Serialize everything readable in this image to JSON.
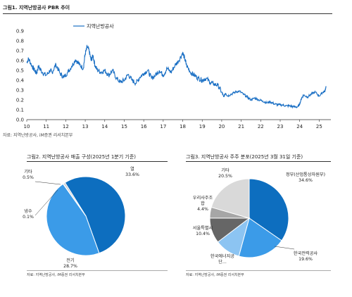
{
  "fig1": {
    "title": "그림1. 지역난방공사 PBR 추이",
    "source": "자료: 지역난방공사, iM증권 리서치본부"
  },
  "fig2": {
    "title": "그림2. 지역난방공사 매출 구성(2025년 1분기 기준)",
    "source": "자료: 지역난방공사, iM증권 리서치본부"
  },
  "fig3": {
    "title": "그림3. 지역난방공사 주주 분포(2025년 3월 31일 기준)",
    "source": "자료: 지역난방공사, iM증권 리서치본부"
  },
  "colors": {
    "line": "#1a6fc4",
    "pie2": [
      "#0d6ebf",
      "#3b9be8",
      "#1f2b49",
      "#c9ccd3"
    ],
    "pie3": [
      "#0d6ebf",
      "#3b9be8",
      "#8cc4f2",
      "#666666",
      "#a6a6a6",
      "#d9d9d9"
    ]
  },
  "chart_data": [
    {
      "type": "line",
      "legend": "top-left",
      "grid": false,
      "xlim": [
        10,
        25.6
      ],
      "ylim": [
        0,
        0.9
      ],
      "x_ticks": [
        "10",
        "11",
        "12",
        "13",
        "14",
        "15",
        "16",
        "17",
        "18",
        "19",
        "20",
        "21",
        "22",
        "23",
        "24",
        "25"
      ],
      "y_ticks": [
        "0.0",
        "0.1",
        "0.2",
        "0.3",
        "0.4",
        "0.5",
        "0.6",
        "0.7",
        "0.8",
        "0.9"
      ],
      "series": [
        {
          "name": "지역난방공사",
          "x": [
            10.0,
            10.1,
            10.25,
            10.4,
            10.5,
            10.6,
            10.8,
            11.0,
            11.2,
            11.3,
            11.5,
            11.7,
            11.9,
            12.1,
            12.3,
            12.5,
            12.7,
            12.9,
            13.0,
            13.1,
            13.2,
            13.3,
            13.4,
            13.5,
            13.6,
            13.8,
            14.0,
            14.2,
            14.4,
            14.6,
            14.8,
            15.0,
            15.2,
            15.4,
            15.6,
            15.8,
            16.0,
            16.2,
            16.4,
            16.6,
            16.8,
            17.0,
            17.2,
            17.4,
            17.6,
            17.8,
            18.0,
            18.1,
            18.2,
            18.4,
            18.6,
            18.8,
            19.0,
            19.2,
            19.4,
            19.6,
            19.8,
            20.0,
            20.1,
            20.2,
            20.3,
            20.5,
            20.7,
            20.9,
            21.1,
            21.3,
            21.5,
            21.7,
            21.9,
            22.1,
            22.3,
            22.5,
            22.7,
            22.9,
            23.1,
            23.3,
            23.5,
            23.7,
            23.9,
            24.0,
            24.1,
            24.2,
            24.4,
            24.6,
            24.8,
            25.0,
            25.2,
            25.3,
            25.35
          ],
          "values": [
            0.58,
            0.62,
            0.55,
            0.5,
            0.47,
            0.54,
            0.48,
            0.45,
            0.5,
            0.48,
            0.56,
            0.47,
            0.43,
            0.48,
            0.54,
            0.61,
            0.56,
            0.52,
            0.67,
            0.74,
            0.7,
            0.6,
            0.65,
            0.55,
            0.51,
            0.48,
            0.5,
            0.45,
            0.5,
            0.42,
            0.38,
            0.4,
            0.46,
            0.4,
            0.37,
            0.43,
            0.47,
            0.5,
            0.42,
            0.45,
            0.5,
            0.45,
            0.52,
            0.48,
            0.55,
            0.6,
            0.68,
            0.62,
            0.55,
            0.48,
            0.45,
            0.42,
            0.4,
            0.42,
            0.38,
            0.36,
            0.35,
            0.28,
            0.23,
            0.27,
            0.24,
            0.26,
            0.28,
            0.29,
            0.26,
            0.23,
            0.2,
            0.22,
            0.2,
            0.19,
            0.17,
            0.18,
            0.16,
            0.15,
            0.15,
            0.14,
            0.14,
            0.13,
            0.13,
            0.16,
            0.22,
            0.25,
            0.23,
            0.26,
            0.28,
            0.24,
            0.28,
            0.29,
            0.34
          ]
        }
      ]
    },
    {
      "type": "pie",
      "slices": [
        {
          "label": "열",
          "value": 33.6
        },
        {
          "label": "전기",
          "value": 28.7
        },
        {
          "label": "냉수",
          "value": 0.1
        },
        {
          "label": "기타",
          "value": 0.5
        }
      ],
      "value_labels": [
        "33.6%",
        "28.7%",
        "0.1%",
        "0.5%"
      ]
    },
    {
      "type": "pie",
      "slices": [
        {
          "label": "정부(산업통상자원부)",
          "value": 34.6
        },
        {
          "label": "한국전력공사",
          "value": 19.6
        },
        {
          "label": "한국에너지공단",
          "value": 10.4
        },
        {
          "label": "서울특별시",
          "value": 10.4
        },
        {
          "label": "우리사주조합",
          "value": 4.4
        },
        {
          "label": "기타",
          "value": 20.5
        }
      ],
      "value_labels": [
        "34.6%",
        "19.6%",
        "",
        "10.4%",
        "4.4%",
        "20.5%"
      ]
    }
  ]
}
